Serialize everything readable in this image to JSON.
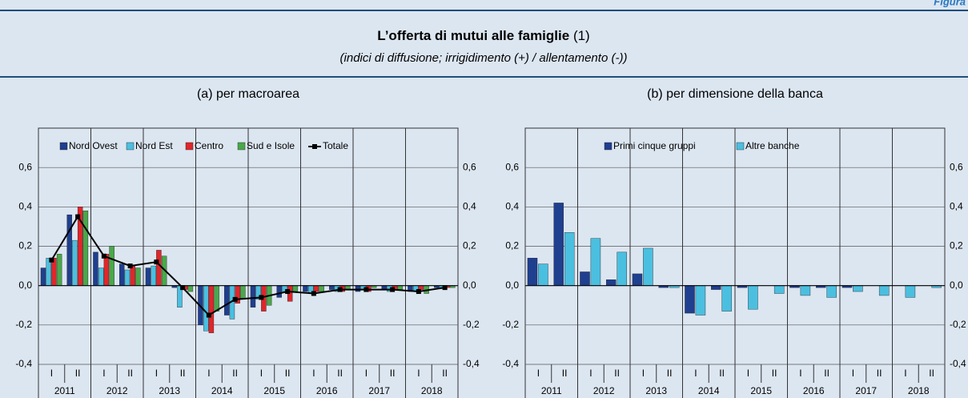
{
  "header": {
    "label": "Figura",
    "title": "L’offerta di mutui alle famiglie",
    "title_note": "(1)",
    "subtitle": "(indici di diffusione; irrigidimento (+) / allentamento (-))"
  },
  "chart_data": [
    {
      "type": "bar",
      "title": "(a) per macroarea",
      "categories": [
        "I",
        "II",
        "I",
        "II",
        "I",
        "II",
        "I",
        "II",
        "I",
        "II",
        "I",
        "II",
        "I",
        "II",
        "I",
        "II"
      ],
      "years": [
        "2011",
        "2012",
        "2013",
        "2014",
        "2015",
        "2016",
        "2017",
        "2018"
      ],
      "series": [
        {
          "name": "Nord Ovest",
          "color": "#1f3f8f",
          "values": [
            0.09,
            0.36,
            0.17,
            0.11,
            0.09,
            -0.01,
            -0.2,
            -0.15,
            -0.11,
            -0.06,
            -0.03,
            -0.02,
            -0.03,
            -0.02,
            -0.03,
            -0.01
          ]
        },
        {
          "name": "Nord Est",
          "color": "#4bbfe0",
          "values": [
            0.14,
            0.23,
            0.09,
            0.08,
            0.1,
            -0.11,
            -0.23,
            -0.17,
            -0.07,
            -0.03,
            -0.04,
            -0.03,
            -0.02,
            -0.03,
            -0.03,
            -0.01
          ]
        },
        {
          "name": "Centro",
          "color": "#e0262b",
          "values": [
            0.14,
            0.4,
            0.16,
            0.1,
            0.18,
            -0.02,
            -0.24,
            -0.09,
            -0.13,
            -0.08,
            -0.03,
            -0.03,
            -0.03,
            -0.02,
            -0.02,
            -0.01
          ]
        },
        {
          "name": "Sud e Isole",
          "color": "#4aa84a",
          "values": [
            0.16,
            0.38,
            0.2,
            0.09,
            0.15,
            -0.03,
            -0.13,
            -0.07,
            -0.1,
            -0.03,
            -0.03,
            -0.02,
            -0.01,
            -0.02,
            -0.04,
            -0.01
          ]
        },
        {
          "name": "Totale",
          "color": "#000000",
          "type": "line",
          "marker": "square",
          "values": [
            0.13,
            0.35,
            0.15,
            0.1,
            0.12,
            -0.01,
            -0.15,
            -0.07,
            -0.06,
            -0.03,
            -0.04,
            -0.02,
            -0.02,
            -0.02,
            -0.03,
            -0.01
          ]
        }
      ],
      "ylim": [
        -0.4,
        0.8
      ],
      "yticks": [
        {
          "value": -0.4,
          "label": "-0,4"
        },
        {
          "value": -0.2,
          "label": "-0,2"
        },
        {
          "value": 0,
          "label": "0,0"
        },
        {
          "value": 0.2,
          "label": "0,2"
        },
        {
          "value": 0.4,
          "label": "0,4"
        },
        {
          "value": 0.6,
          "label": "0,6"
        }
      ],
      "grid": true
    },
    {
      "type": "bar",
      "title": "(b) per dimensione della banca",
      "categories": [
        "I",
        "II",
        "I",
        "II",
        "I",
        "II",
        "I",
        "II",
        "I",
        "II",
        "I",
        "II",
        "I",
        "II",
        "I",
        "II"
      ],
      "years": [
        "2011",
        "2012",
        "2013",
        "2014",
        "2015",
        "2016",
        "2017",
        "2018"
      ],
      "series": [
        {
          "name": "Primi cinque gruppi",
          "color": "#1f3f8f",
          "values": [
            0.14,
            0.42,
            0.07,
            0.03,
            0.06,
            -0.01,
            -0.14,
            -0.02,
            -0.01,
            0,
            -0.01,
            -0.01,
            -0.01,
            0,
            0,
            0
          ]
        },
        {
          "name": "Altre banche",
          "color": "#4bbfe0",
          "values": [
            0.11,
            0.27,
            0.24,
            0.17,
            0.19,
            -0.01,
            -0.15,
            -0.13,
            -0.12,
            -0.04,
            -0.05,
            -0.06,
            -0.03,
            -0.05,
            -0.06,
            -0.01
          ]
        }
      ],
      "ylim": [
        -0.4,
        0.8
      ],
      "yticks": [
        {
          "value": -0.4,
          "label": "-0,4"
        },
        {
          "value": -0.2,
          "label": "-0,2"
        },
        {
          "value": 0,
          "label": "0,0"
        },
        {
          "value": 0.2,
          "label": "0,2"
        },
        {
          "value": 0.4,
          "label": "0,4"
        },
        {
          "value": 0.6,
          "label": "0,6"
        }
      ],
      "grid": true
    }
  ]
}
